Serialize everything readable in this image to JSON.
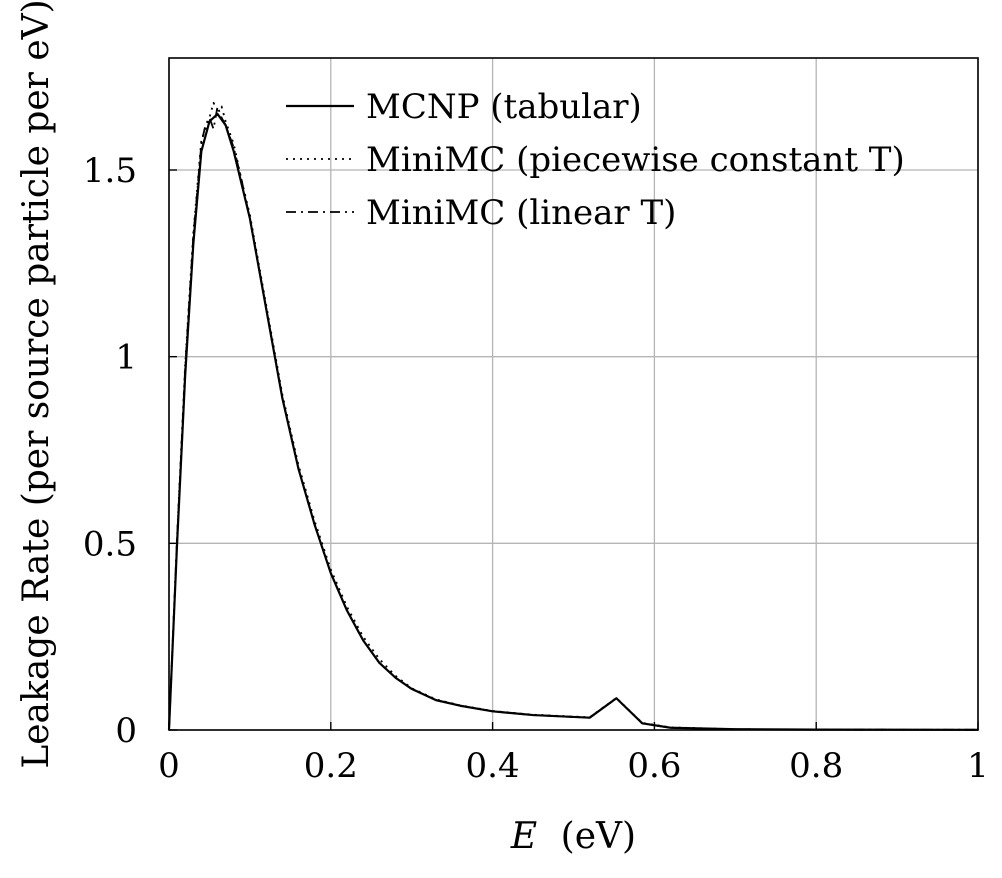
{
  "chart_data": {
    "type": "line",
    "xlabel": "(eV)",
    "xlabel_var": "E",
    "ylabel": "Leakage Rate (per source particle per eV)",
    "xlim": [
      0,
      1
    ],
    "ylim": [
      0,
      1.8
    ],
    "xticks": [
      0,
      0.2,
      0.4,
      0.6,
      0.8,
      1
    ],
    "xtick_labels": [
      "0",
      "0.2",
      "0.4",
      "0.6",
      "0.8",
      "1"
    ],
    "yticks": [
      0,
      0.5,
      1,
      1.5
    ],
    "ytick_labels": [
      "0",
      "0.5",
      "1",
      "1.5"
    ],
    "grid": true,
    "legend_position": "top-right",
    "series": [
      {
        "name": "MCNP (tabular)",
        "style": "solid",
        "x": [
          0,
          0.01,
          0.02,
          0.03,
          0.04,
          0.05,
          0.06,
          0.07,
          0.08,
          0.09,
          0.1,
          0.12,
          0.14,
          0.16,
          0.18,
          0.2,
          0.22,
          0.24,
          0.26,
          0.28,
          0.3,
          0.33,
          0.36,
          0.4,
          0.45,
          0.52,
          0.553,
          0.585,
          0.62,
          0.7,
          0.8,
          1.0
        ],
        "y": [
          0,
          0.5,
          0.95,
          1.3,
          1.55,
          1.63,
          1.65,
          1.62,
          1.55,
          1.46,
          1.37,
          1.13,
          0.89,
          0.7,
          0.55,
          0.42,
          0.32,
          0.24,
          0.18,
          0.14,
          0.11,
          0.08,
          0.065,
          0.05,
          0.04,
          0.033,
          0.085,
          0.018,
          0.006,
          0.002,
          0.001,
          0.0005
        ]
      },
      {
        "name": "MiniMC (piecewise constant T)",
        "style": "dotted",
        "x": [
          0,
          0.01,
          0.02,
          0.03,
          0.04,
          0.05,
          0.055,
          0.06,
          0.065,
          0.07,
          0.08,
          0.09,
          0.1,
          0.12,
          0.14,
          0.16,
          0.18,
          0.2,
          0.22,
          0.24,
          0.26,
          0.28,
          0.3,
          0.33,
          0.36,
          0.4,
          0.45,
          0.52,
          0.553,
          0.585,
          0.62,
          0.7,
          0.8,
          1.0
        ],
        "y": [
          0,
          0.52,
          0.98,
          1.33,
          1.58,
          1.64,
          1.68,
          1.66,
          1.67,
          1.63,
          1.57,
          1.47,
          1.38,
          1.14,
          0.9,
          0.71,
          0.56,
          0.43,
          0.33,
          0.25,
          0.19,
          0.145,
          0.112,
          0.082,
          0.066,
          0.051,
          0.041,
          0.034,
          0.086,
          0.019,
          0.007,
          0.002,
          0.001,
          0.0005
        ]
      },
      {
        "name": "MiniMC (linear T)",
        "style": "dashdot",
        "x": [
          0,
          0.01,
          0.02,
          0.03,
          0.04,
          0.045,
          0.05,
          0.055,
          0.06,
          0.065,
          0.07,
          0.08,
          0.09,
          0.1,
          0.12,
          0.14,
          0.16,
          0.18,
          0.2,
          0.22,
          0.24,
          0.26,
          0.28,
          0.3,
          0.33,
          0.36,
          0.4,
          0.45,
          0.52,
          0.553,
          0.585,
          0.62,
          0.7,
          0.8,
          1.0
        ],
        "y": [
          0,
          0.51,
          0.97,
          1.32,
          1.57,
          1.62,
          1.64,
          1.61,
          1.67,
          1.64,
          1.62,
          1.56,
          1.47,
          1.37,
          1.13,
          0.89,
          0.7,
          0.55,
          0.42,
          0.32,
          0.24,
          0.18,
          0.14,
          0.11,
          0.08,
          0.065,
          0.05,
          0.04,
          0.033,
          0.085,
          0.018,
          0.006,
          0.002,
          0.001,
          0.0005
        ]
      }
    ]
  }
}
